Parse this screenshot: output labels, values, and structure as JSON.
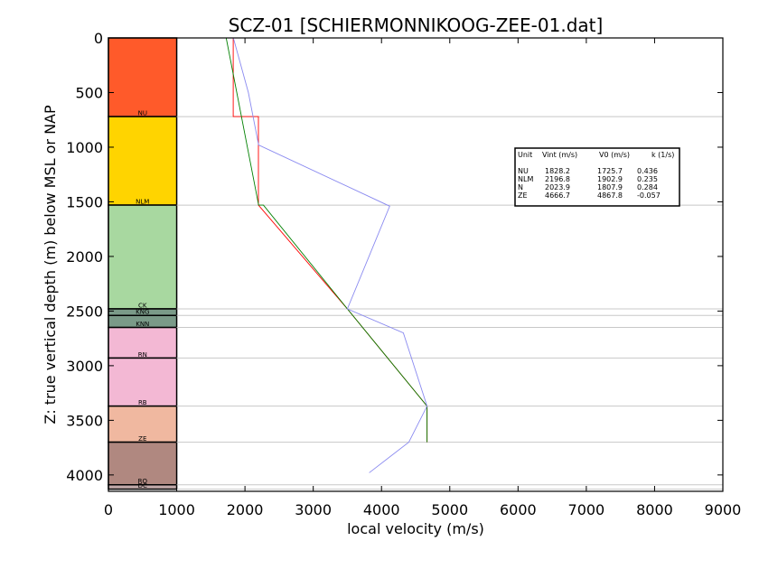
{
  "chart_data": {
    "type": "line",
    "title": "SCZ-01 [SCHIERMONNIKOOG-ZEE-01.dat]",
    "xlabel": "local velocity (m/s)",
    "ylabel": "Z: true vertical depth (m) below MSL or NAP",
    "xlim": [
      0,
      9000
    ],
    "ylim": [
      4150,
      0
    ],
    "xticks": [
      "0",
      "1000",
      "2000",
      "3000",
      "4000",
      "5000",
      "6000",
      "7000",
      "8000",
      "9000"
    ],
    "yticks": [
      "0",
      "500",
      "1000",
      "1500",
      "2000",
      "2500",
      "3000",
      "3500",
      "4000"
    ],
    "column_x_range": [
      0,
      1000
    ],
    "units": [
      {
        "label": "NU",
        "top": 0,
        "bottom": 720,
        "color": "#ff5a2a"
      },
      {
        "label": "NLM",
        "top": 720,
        "bottom": 1530,
        "color": "#ffd400"
      },
      {
        "label": "CK",
        "top": 1530,
        "bottom": 2480,
        "color": "#a8d8a0"
      },
      {
        "label": "KNG",
        "top": 2480,
        "bottom": 2540,
        "color": "#7a9a88"
      },
      {
        "label": "KNN",
        "top": 2540,
        "bottom": 2650,
        "color": "#7a9a88"
      },
      {
        "label": "RN",
        "top": 2650,
        "bottom": 2930,
        "color": "#f3b8d4"
      },
      {
        "label": "RB",
        "top": 2930,
        "bottom": 3370,
        "color": "#f3b8d4"
      },
      {
        "label": "ZE",
        "top": 3370,
        "bottom": 3700,
        "color": "#f0b8a0"
      },
      {
        "label": "RO",
        "top": 3700,
        "bottom": 4090,
        "color": "#b08880"
      },
      {
        "label": "DC",
        "top": 4090,
        "bottom": 4130,
        "color": "#c0a8a8"
      }
    ],
    "series": [
      {
        "color": "#ff0000",
        "points": [
          [
            1828,
            0
          ],
          [
            1828,
            720
          ],
          [
            2197,
            720
          ],
          [
            2197,
            1530
          ],
          [
            3500,
            2480
          ],
          [
            4667,
            3370
          ],
          [
            4667,
            3700
          ]
        ]
      },
      {
        "color": "#008000",
        "points": [
          [
            1725,
            0
          ],
          [
            2200,
            1530
          ],
          [
            2270,
            1530
          ],
          [
            3500,
            2480
          ],
          [
            4667,
            3370
          ],
          [
            4667,
            3700
          ]
        ]
      },
      {
        "color": "#8a8af0",
        "points": [
          [
            1830,
            0
          ],
          [
            2050,
            500
          ],
          [
            2200,
            980
          ],
          [
            4120,
            1540
          ],
          [
            3500,
            2480
          ],
          [
            4320,
            2700
          ],
          [
            4667,
            3370
          ],
          [
            4400,
            3700
          ],
          [
            3820,
            3980
          ]
        ]
      }
    ],
    "legend": {
      "header": [
        "Unit",
        "Vint (m/s)",
        "V0 (m/s)",
        "k (1/s)"
      ],
      "rows": [
        [
          "NU",
          "1828.2",
          "1725.7",
          "0.436"
        ],
        [
          "NLM",
          "2196.8",
          "1902.9",
          "0.235"
        ],
        [
          "N",
          "2023.9",
          "1807.9",
          "0.284"
        ],
        [
          "ZE",
          "4666.7",
          "4867.8",
          "-0.057"
        ]
      ]
    },
    "grid": "horizontal lines at unit boundaries"
  }
}
